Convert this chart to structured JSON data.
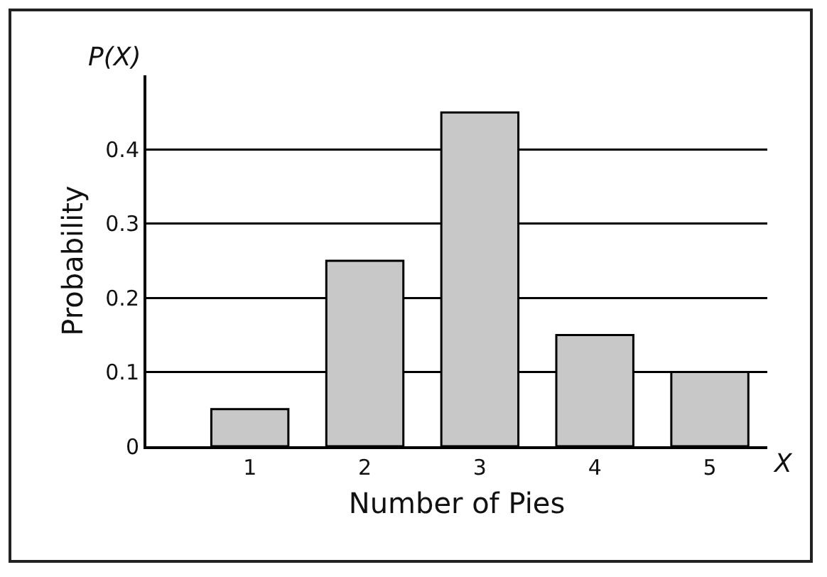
{
  "chart_data": {
    "type": "bar",
    "xlabel": "Number of Pies",
    "ylabel": "Probability",
    "annotations": [
      "P(X)",
      "X"
    ],
    "categories": [
      "1",
      "2",
      "3",
      "4",
      "5"
    ],
    "values": [
      0.05,
      0.25,
      0.45,
      0.15,
      0.1
    ],
    "color": "#c8c8c8",
    "ylim": [
      0,
      0.5
    ],
    "yticks": [
      0,
      0.1,
      0.2,
      0.3,
      0.4
    ],
    "grid": "y"
  }
}
